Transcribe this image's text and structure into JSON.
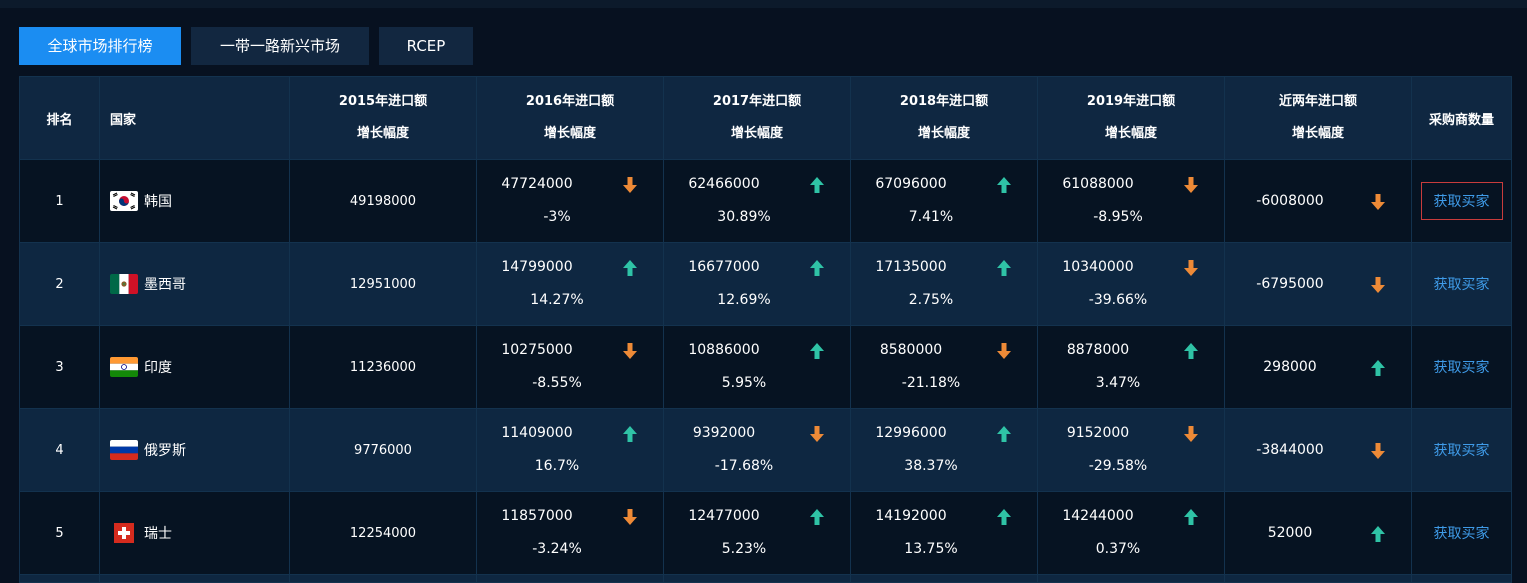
{
  "tabs": [
    {
      "label": "全球市场排行榜",
      "active": true
    },
    {
      "label": "一带一路新兴市场",
      "active": false
    },
    {
      "label": "RCEP",
      "active": false
    }
  ],
  "headers": {
    "rank": "排名",
    "country": "国家",
    "y2015": [
      "2015年进口额",
      "增长幅度"
    ],
    "y2016": [
      "2016年进口额",
      "增长幅度"
    ],
    "y2017": [
      "2017年进口额",
      "增长幅度"
    ],
    "y2018": [
      "2018年进口额",
      "增长幅度"
    ],
    "y2019": [
      "2019年进口额",
      "增长幅度"
    ],
    "recent": [
      "近两年进口额",
      "增长幅度"
    ],
    "buyers": "采购商数量"
  },
  "colors": {
    "up": "#2fc3a6",
    "down": "#ed8a37",
    "accent": "#1b8df2",
    "link": "#3f9be8"
  },
  "rows": [
    {
      "rank": "1",
      "country": "韩国",
      "flag": "korea-flag",
      "y2015": "49198000",
      "y2016": {
        "value": "47724000",
        "growth": "-3%",
        "dir": "down"
      },
      "y2017": {
        "value": "62466000",
        "growth": "30.89%",
        "dir": "up"
      },
      "y2018": {
        "value": "67096000",
        "growth": "7.41%",
        "dir": "up"
      },
      "y2019": {
        "value": "61088000",
        "growth": "-8.95%",
        "dir": "down"
      },
      "recent": {
        "value": "-6008000",
        "dir": "down"
      },
      "buyers": "获取买家"
    },
    {
      "rank": "2",
      "country": "墨西哥",
      "flag": "mexico-flag",
      "y2015": "12951000",
      "y2016": {
        "value": "14799000",
        "growth": "14.27%",
        "dir": "up"
      },
      "y2017": {
        "value": "16677000",
        "growth": "12.69%",
        "dir": "up"
      },
      "y2018": {
        "value": "17135000",
        "growth": "2.75%",
        "dir": "up"
      },
      "y2019": {
        "value": "10340000",
        "growth": "-39.66%",
        "dir": "down"
      },
      "recent": {
        "value": "-6795000",
        "dir": "down"
      },
      "buyers": "获取买家"
    },
    {
      "rank": "3",
      "country": "印度",
      "flag": "india-flag",
      "y2015": "11236000",
      "y2016": {
        "value": "10275000",
        "growth": "-8.55%",
        "dir": "down"
      },
      "y2017": {
        "value": "10886000",
        "growth": "5.95%",
        "dir": "up"
      },
      "y2018": {
        "value": "8580000",
        "growth": "-21.18%",
        "dir": "down"
      },
      "y2019": {
        "value": "8878000",
        "growth": "3.47%",
        "dir": "up"
      },
      "recent": {
        "value": "298000",
        "dir": "up"
      },
      "buyers": "获取买家"
    },
    {
      "rank": "4",
      "country": "俄罗斯",
      "flag": "russia-flag",
      "y2015": "9776000",
      "y2016": {
        "value": "11409000",
        "growth": "16.7%",
        "dir": "up"
      },
      "y2017": {
        "value": "9392000",
        "growth": "-17.68%",
        "dir": "down"
      },
      "y2018": {
        "value": "12996000",
        "growth": "38.37%",
        "dir": "up"
      },
      "y2019": {
        "value": "9152000",
        "growth": "-29.58%",
        "dir": "down"
      },
      "recent": {
        "value": "-3844000",
        "dir": "down"
      },
      "buyers": "获取买家"
    },
    {
      "rank": "5",
      "country": "瑞士",
      "flag": "switzerland-flag",
      "y2015": "12254000",
      "y2016": {
        "value": "11857000",
        "growth": "-3.24%",
        "dir": "down"
      },
      "y2017": {
        "value": "12477000",
        "growth": "5.23%",
        "dir": "up"
      },
      "y2018": {
        "value": "14192000",
        "growth": "13.75%",
        "dir": "up"
      },
      "y2019": {
        "value": "14244000",
        "growth": "0.37%",
        "dir": "up"
      },
      "recent": {
        "value": "52000",
        "dir": "up"
      },
      "buyers": "获取买家"
    }
  ]
}
